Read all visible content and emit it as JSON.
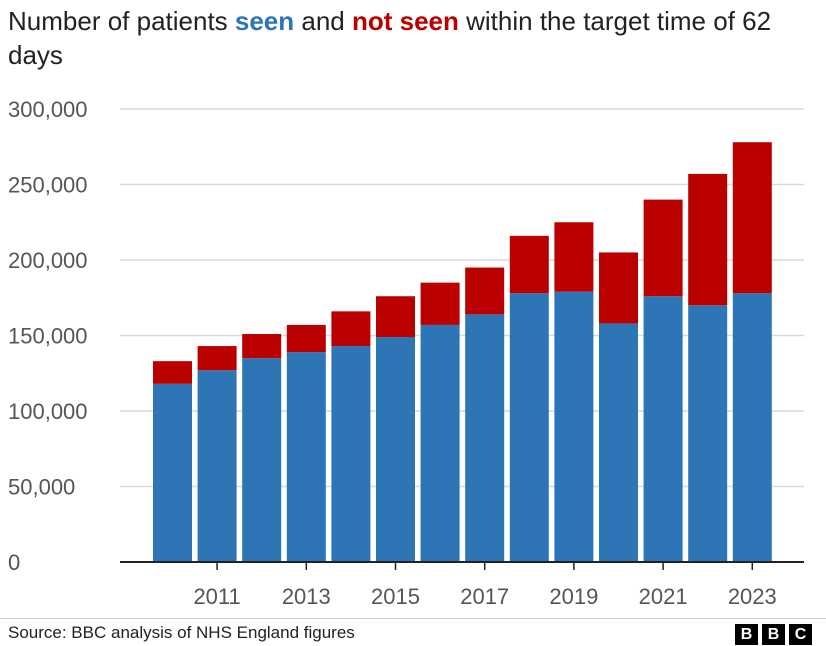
{
  "title": {
    "prefix": "Number of patients ",
    "seen_word": "seen",
    "middle": " and ",
    "not_seen_word": "not seen",
    "suffix": " within the target time of 62 days"
  },
  "footer": {
    "source": "Source: BBC analysis of NHS England figures",
    "logo_letters": [
      "B",
      "B",
      "C"
    ]
  },
  "colors": {
    "seen": "#2e75b6",
    "not_seen": "#bb0000",
    "grid": "#d9d9d9",
    "axis": "#222222"
  },
  "chart_data": {
    "type": "bar",
    "stacked": true,
    "categories": [
      "2010",
      "2011",
      "2012",
      "2013",
      "2014",
      "2015",
      "2016",
      "2017",
      "2018",
      "2019",
      "2020",
      "2021",
      "2022",
      "2023"
    ],
    "x_tick_labels": [
      "2011",
      "2013",
      "2015",
      "2017",
      "2019",
      "2021",
      "2023"
    ],
    "series": [
      {
        "name": "seen",
        "color": "#2e75b6",
        "values": [
          118000,
          127000,
          135000,
          139000,
          143000,
          149000,
          157000,
          164000,
          178000,
          179000,
          158000,
          176000,
          170000,
          178000
        ]
      },
      {
        "name": "not seen",
        "color": "#bb0000",
        "values": [
          15000,
          16000,
          16000,
          18000,
          23000,
          27000,
          28000,
          31000,
          38000,
          46000,
          47000,
          64000,
          87000,
          100000
        ]
      }
    ],
    "ylim": [
      0,
      300000
    ],
    "y_ticks": [
      0,
      50000,
      100000,
      150000,
      200000,
      250000,
      300000
    ],
    "y_tick_labels": [
      "0",
      "50,000",
      "100,000",
      "150,000",
      "200,000",
      "250,000",
      "300,000"
    ],
    "grid": true,
    "legend": "in-title"
  }
}
